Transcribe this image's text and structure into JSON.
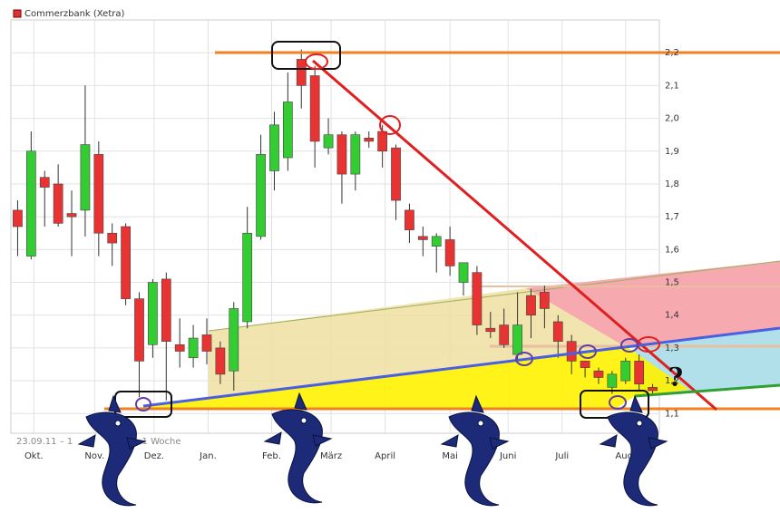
{
  "chart_data": {
    "type": "candlestick",
    "legend": "Commerzbank (Xetra)",
    "color": "#e03030",
    "up_color": "#33cc33",
    "down_color": "#e83333",
    "grid": true,
    "notes": [
      "23.09.11 – 1",
      "= 1 Woche"
    ],
    "annotation": "?",
    "open": [
      1.72,
      1.58,
      1.82,
      1.8,
      1.71,
      1.72,
      1.89,
      1.65,
      1.67,
      1.45,
      1.31,
      1.51,
      1.31,
      1.27,
      1.34,
      1.3,
      1.23,
      1.38,
      1.64,
      1.84,
      1.88,
      2.18,
      2.13,
      1.91,
      1.95,
      1.83,
      1.94,
      1.96,
      1.91,
      1.72,
      1.64,
      1.61,
      1.63,
      1.5,
      1.53,
      1.36,
      1.37,
      1.28,
      1.46,
      1.47,
      1.38,
      1.32,
      1.26,
      1.23,
      1.18,
      1.2,
      1.26,
      1.18
    ],
    "close": [
      1.67,
      1.9,
      1.79,
      1.68,
      1.7,
      1.92,
      1.65,
      1.62,
      1.45,
      1.26,
      1.5,
      1.32,
      1.29,
      1.33,
      1.29,
      1.22,
      1.42,
      1.65,
      1.89,
      1.98,
      2.05,
      2.1,
      1.93,
      1.95,
      1.83,
      1.95,
      1.93,
      1.9,
      1.75,
      1.66,
      1.63,
      1.64,
      1.55,
      1.56,
      1.37,
      1.35,
      1.31,
      1.37,
      1.4,
      1.42,
      1.32,
      1.26,
      1.24,
      1.21,
      1.22,
      1.26,
      1.19,
      1.17
    ],
    "high": [
      1.75,
      1.96,
      1.84,
      1.86,
      1.78,
      2.1,
      1.93,
      1.68,
      1.68,
      1.47,
      1.51,
      1.53,
      1.39,
      1.37,
      1.39,
      1.32,
      1.44,
      1.73,
      1.95,
      2.02,
      2.14,
      2.21,
      2.16,
      2.0,
      1.96,
      1.96,
      1.96,
      1.98,
      1.92,
      1.74,
      1.67,
      1.65,
      1.67,
      1.56,
      1.55,
      1.41,
      1.42,
      1.47,
      1.48,
      1.49,
      1.4,
      1.34,
      1.26,
      1.24,
      1.23,
      1.27,
      1.28,
      1.19
    ],
    "low": [
      1.58,
      1.57,
      1.67,
      1.67,
      1.58,
      1.64,
      1.58,
      1.55,
      1.43,
      1.15,
      1.27,
      1.14,
      1.24,
      1.24,
      1.25,
      1.19,
      1.17,
      1.36,
      1.63,
      1.78,
      1.84,
      2.03,
      1.85,
      1.89,
      1.74,
      1.78,
      1.91,
      1.85,
      1.69,
      1.62,
      1.58,
      1.53,
      1.52,
      1.46,
      1.34,
      1.33,
      1.3,
      1.26,
      1.33,
      1.36,
      1.27,
      1.22,
      1.21,
      1.19,
      1.16,
      1.19,
      1.17,
      1.16
    ],
    "xlim": [
      -0.5,
      47.5
    ],
    "xticks": [
      {
        "value": 1.2,
        "label": "Okt."
      },
      {
        "value": 5.7,
        "label": "Nov."
      },
      {
        "value": 10.1,
        "label": "Dez."
      },
      {
        "value": 14.1,
        "label": "Jan."
      },
      {
        "value": 18.8,
        "label": "Feb."
      },
      {
        "value": 23.2,
        "label": "März"
      },
      {
        "value": 27.2,
        "label": "April"
      },
      {
        "value": 32,
        "label": "Mai"
      },
      {
        "value": 36.3,
        "label": "Juni"
      },
      {
        "value": 40.3,
        "label": "Juli"
      },
      {
        "value": 45,
        "label": "Aug."
      }
    ],
    "ylim": [
      1.04,
      2.3
    ],
    "yticks": [
      {
        "value": 1.1,
        "label": "1,1"
      },
      {
        "value": 1.2,
        "label": "1,2"
      },
      {
        "value": 1.3,
        "label": "1,3"
      },
      {
        "value": 1.4,
        "label": "1,4"
      },
      {
        "value": 1.5,
        "label": "1,5"
      },
      {
        "value": 1.6,
        "label": "1,6"
      },
      {
        "value": 1.7,
        "label": "1,7"
      },
      {
        "value": 1.8,
        "label": "1,8"
      },
      {
        "value": 1.9,
        "label": "1,9"
      },
      {
        "value": 2.0,
        "label": "2,0"
      },
      {
        "value": 2.1,
        "label": "2,1"
      },
      {
        "value": 2.2,
        "label": "2,2"
      }
    ]
  }
}
